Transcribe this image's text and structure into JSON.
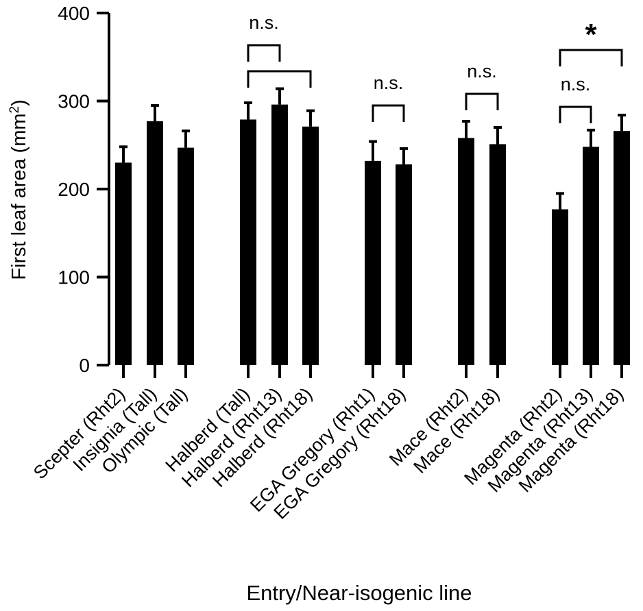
{
  "chart_data": {
    "type": "bar",
    "title": "",
    "xlabel": "Entry/Near-isogenic line",
    "ylabel": "First leaf area (mm",
    "ylabel_superscript": "2",
    "ylabel_close": ")",
    "ylim": [
      0,
      400
    ],
    "yticks": [
      "0",
      "100",
      "200",
      "300",
      "400"
    ],
    "grid": false,
    "legend": "none",
    "bar_color": "#000000",
    "categories": [
      "Scepter (Rht2)",
      "Insignia (Tall)",
      "Olympic (Tall)",
      "Halberd (Tall)",
      "Halberd (Rht13)",
      "Halberd (Rht18)",
      "EGA Gregory (Rht1)",
      "EGA Gregory (Rht18)",
      "Mace (Rht2)",
      "Mace (Rht18)",
      "Magenta (Rht2)",
      "Magenta (Rht13)",
      "Magenta (Rht18)"
    ],
    "values": [
      230,
      277,
      247,
      279,
      296,
      271,
      232,
      228,
      258,
      251,
      177,
      248,
      266
    ],
    "errors": [
      18,
      18,
      19,
      19,
      18,
      18,
      22,
      18,
      19,
      19,
      18,
      19,
      18
    ],
    "annotations": [
      {
        "label": "n.s.",
        "from": 3,
        "to": 4,
        "level": 2
      },
      {
        "label": "",
        "from": 3,
        "to": 5,
        "level": 1
      },
      {
        "label": "n.s.",
        "from": 6,
        "to": 7,
        "level": 0
      },
      {
        "label": "n.s.",
        "from": 8,
        "to": 9,
        "level": 0
      },
      {
        "label": "n.s.",
        "from": 10,
        "to": 11,
        "level": 0
      },
      {
        "label": "*",
        "from": 10,
        "to": 12,
        "level": 1
      }
    ]
  }
}
